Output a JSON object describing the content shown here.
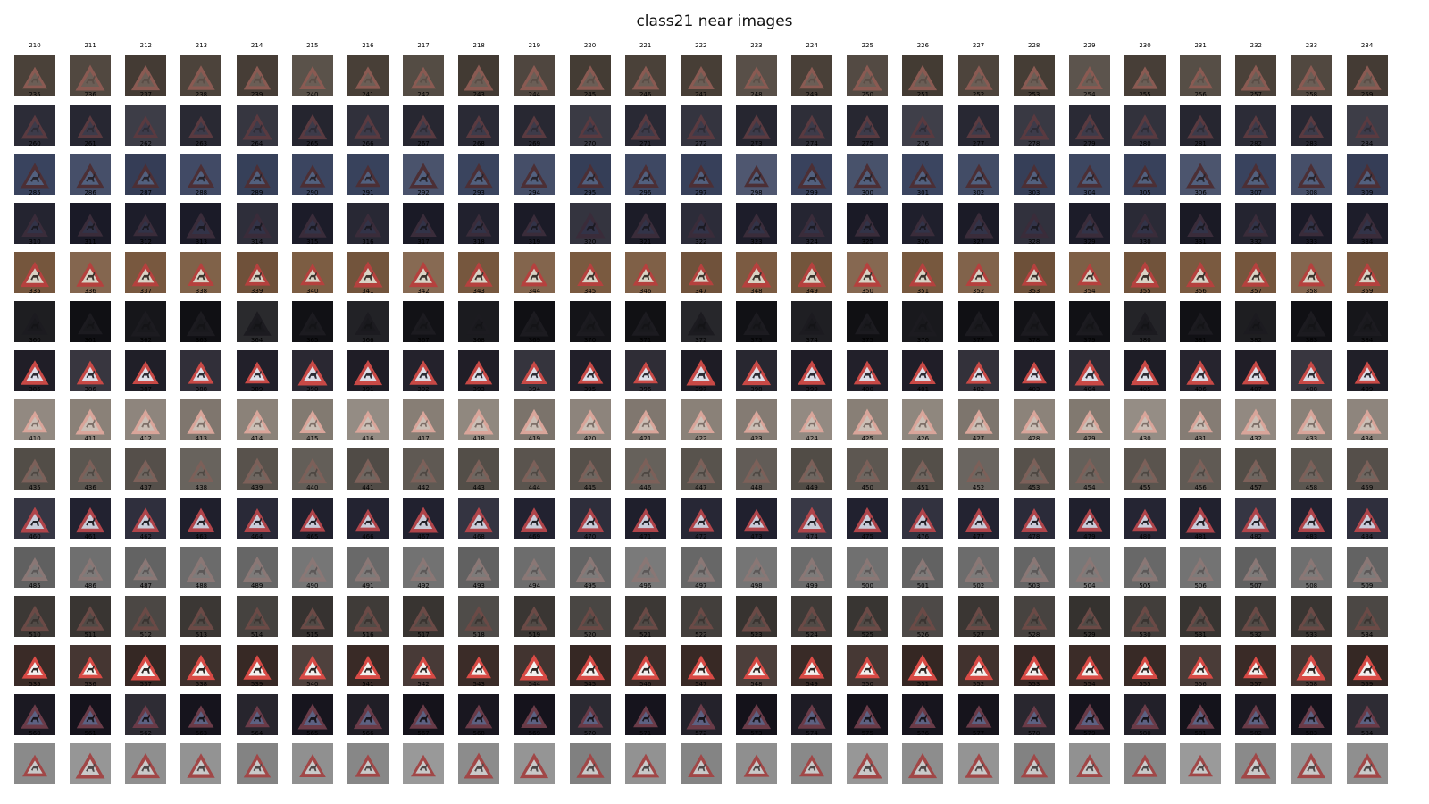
{
  "title": "class21 near images",
  "start_index": 210,
  "end_index": 584,
  "columns": 25,
  "thumbnail_icon": "triangle-warning-sign-deer-icon",
  "row_styles": [
    {
      "row": 0,
      "indices": "210-234",
      "bg": "#4a4139",
      "sign": "#8a5a52",
      "inner": "#6b5e56",
      "glyph": "#5a4d46"
    },
    {
      "row": 1,
      "indices": "235-259",
      "bg": "#2a2a35",
      "sign": "#5a3a40",
      "inner": "#3d3b4a",
      "glyph": "#2e2c36"
    },
    {
      "row": 2,
      "indices": "260-284",
      "bg": "#3b4560",
      "sign": "#4c2f35",
      "inner": "#52607e",
      "glyph": "#26232b"
    },
    {
      "row": 3,
      "indices": "285-309",
      "bg": "#1d1d2a",
      "sign": "#3a2c3a",
      "inner": "#323348",
      "glyph": "#1b1a22"
    },
    {
      "row": 4,
      "indices": "310-334",
      "bg": "#7a5a40",
      "sign": "#b5413e",
      "inner": "#d9d2c4",
      "glyph": "#3b332d"
    },
    {
      "row": 5,
      "indices": "335-359",
      "bg": "#121216",
      "sign": "#1c1b20",
      "inner": "#19191d",
      "glyph": "#141417"
    },
    {
      "row": 6,
      "indices": "360-384",
      "bg": "#22202a",
      "sign": "#c84946",
      "inner": "#dcdde6",
      "glyph": "#2b2b33"
    },
    {
      "row": 7,
      "indices": "385-409",
      "bg": "#8a8178",
      "sign": "#d9a59a",
      "inner": "#cbbfb6",
      "glyph": "#7d6f68"
    },
    {
      "row": 8,
      "indices": "410-434",
      "bg": "#5a544e",
      "sign": "#7c6059",
      "inner": "#6e6660",
      "glyph": "#4e4843"
    },
    {
      "row": 9,
      "indices": "435-459",
      "bg": "#232331",
      "sign": "#b0444a",
      "inner": "#c9cbd8",
      "glyph": "#222228"
    },
    {
      "row": 10,
      "indices": "460-484",
      "bg": "#6b6b6b",
      "sign": "#8a7775",
      "inner": "#7d7a79",
      "glyph": "#5c5858"
    },
    {
      "row": 11,
      "indices": "485-509",
      "bg": "#3c3835",
      "sign": "#6b4a46",
      "inner": "#514a46",
      "glyph": "#3a3431"
    },
    {
      "row": 12,
      "indices": "510-534",
      "bg": "#3b2c28",
      "sign": "#d84a45",
      "inner": "#f2f0ee",
      "glyph": "#2d2624"
    },
    {
      "row": 13,
      "indices": "535-559",
      "bg": "#17151e",
      "sign": "#6a3b48",
      "inner": "#5c6182",
      "glyph": "#17151c"
    },
    {
      "row": 14,
      "indices": "560-584",
      "bg": "#8f8f8f",
      "sign": "#a14747",
      "inner": "#c9c9c9",
      "glyph": "#4d4747"
    }
  ]
}
